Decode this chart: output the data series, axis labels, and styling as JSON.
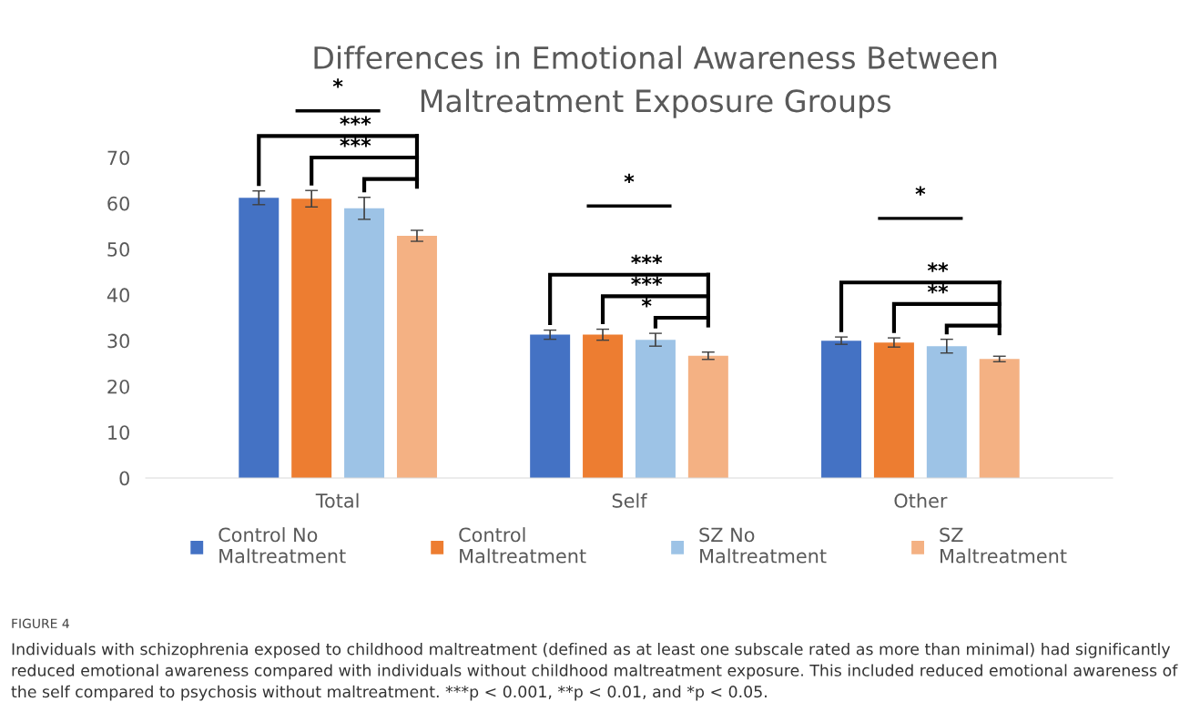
{
  "chart_data": {
    "type": "bar",
    "title": "Differences in Emotional Awareness Between\nMaltreatment Exposure Groups",
    "categories": [
      "Total",
      "Self",
      "Other"
    ],
    "series": [
      {
        "name": "Control No\nMaltreatment",
        "color": "#4472c4",
        "values": [
          61.2,
          31.3,
          30.0
        ],
        "errors": [
          1.5,
          1.0,
          0.8
        ]
      },
      {
        "name": "Control\nMaltreatment",
        "color": "#ed7d31",
        "values": [
          61.0,
          31.3,
          29.6
        ],
        "errors": [
          1.8,
          1.2,
          1.0
        ]
      },
      {
        "name": "SZ No\nMaltreatment",
        "color": "#9dc3e6",
        "values": [
          58.9,
          30.2,
          28.8
        ],
        "errors": [
          2.4,
          1.4,
          1.5
        ]
      },
      {
        "name": "SZ\nMaltreatment",
        "color": "#f4b183",
        "values": [
          52.9,
          26.7,
          26.0
        ],
        "errors": [
          1.2,
          0.8,
          0.6
        ]
      }
    ],
    "ylim": [
      0,
      70
    ],
    "yticks": [
      0,
      10,
      20,
      30,
      40,
      50,
      60,
      70
    ],
    "grid": false,
    "legend": "bottom",
    "annotations": [
      "*",
      "***",
      "***",
      "*",
      "***",
      "***",
      "*",
      "*",
      "**",
      "**",
      "FIGURE 4",
      "Individuals with schizophrenia exposed to childhood maltreatment (defined as at least one subscale rated as more than minimal) had significantly reduced emotional awareness compared with individuals without childhood maltreatment exposure. This included reduced emotional awareness of the self compared to psychosis without maltreatment. ***p < 0.001, **p < 0.01, and *p < 0.05."
    ]
  }
}
